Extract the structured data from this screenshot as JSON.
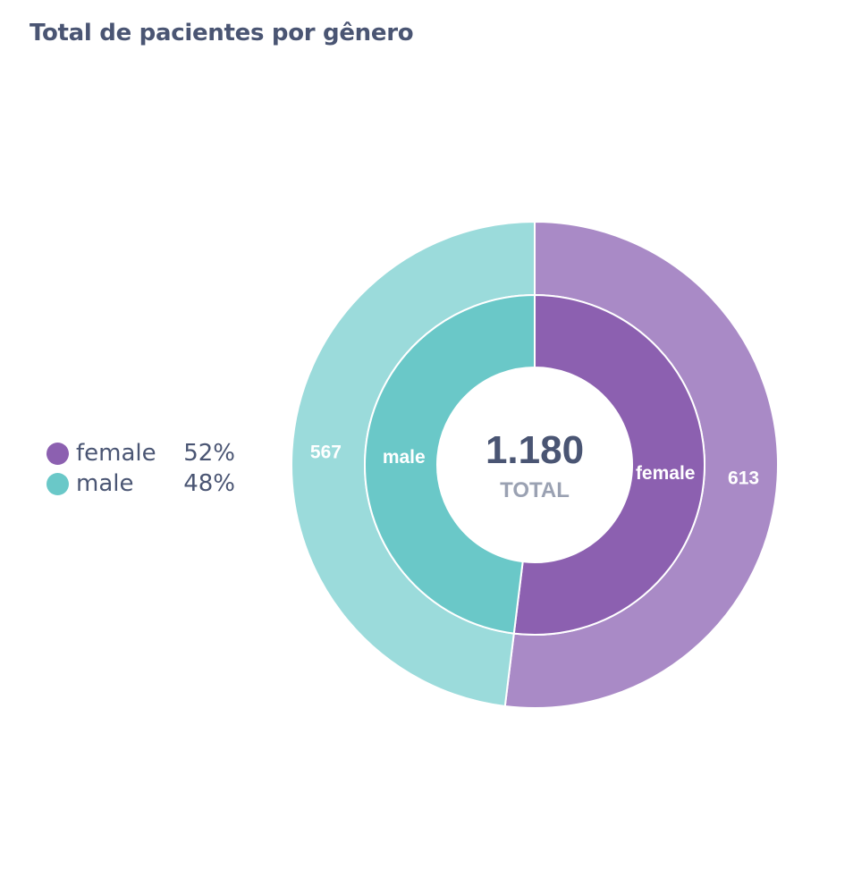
{
  "title": "Total de pacientes por gênero",
  "legend": {
    "items": [
      {
        "label": "female",
        "percent": "52%",
        "color": "#8c60b0"
      },
      {
        "label": "male",
        "percent": "48%",
        "color": "#6ac8c8"
      }
    ]
  },
  "center": {
    "value": "1.180",
    "caption": "TOTAL"
  },
  "chart_data": {
    "type": "pie",
    "style": "nested-donut",
    "title": "Total de pacientes por gênero",
    "total": 1180,
    "categories": [
      "female",
      "male"
    ],
    "values": [
      613,
      567
    ],
    "percentages": [
      52,
      48
    ],
    "inner_colors": [
      "#8c60b0",
      "#6ac8c8"
    ],
    "outer_colors": [
      "#a98ac6",
      "#9bdbdb"
    ],
    "legend_position": "left"
  }
}
